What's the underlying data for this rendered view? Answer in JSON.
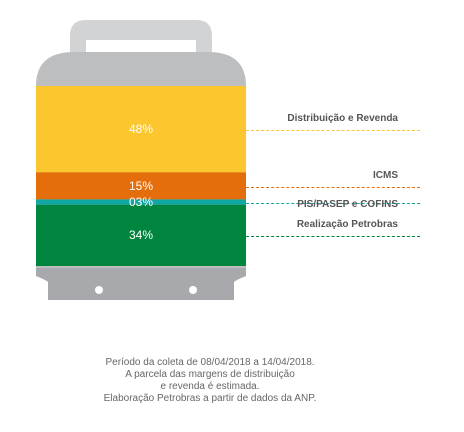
{
  "chart_data": {
    "type": "stacked-bar",
    "title": "",
    "segments": [
      {
        "name": "Distribuição e Revenda",
        "value": 48,
        "label": "48%",
        "color": "#fbc62e"
      },
      {
        "name": "ICMS",
        "value": 15,
        "label": "15%",
        "color": "#e46e0c"
      },
      {
        "name": "PIS/PASEP e COFINS",
        "value": 3,
        "label": "03%",
        "color": "#10a6a2"
      },
      {
        "name": "Realização Petrobras",
        "value": 34,
        "label": "34%",
        "color": "#00853f"
      }
    ]
  },
  "notes": [
    "Período da coleta de 08/04/2018 a 14/04/2018.",
    "A parcela das margens de distribuição",
    "e revenda é estimada.",
    "Elaboração Petrobras a partir de dados da ANP."
  ],
  "colors": {
    "cylinder_body": "#bcbec0",
    "cylinder_dark": "#a7a9ac",
    "handle": "#d1d3d4"
  }
}
